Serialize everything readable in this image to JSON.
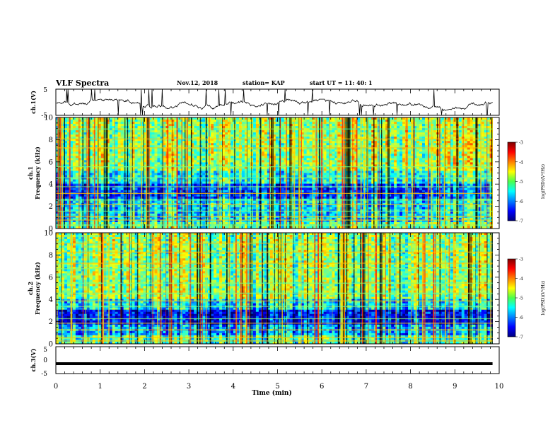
{
  "header": {
    "title": "VLF Spectra",
    "date": "Nov.12, 2018",
    "station": "station= KAP",
    "start": "start UT =  11: 40: 1"
  },
  "chart_data": [
    {
      "type": "line",
      "name": "ch1-waveform",
      "ylabel": "ch.1(V)",
      "ylim": [
        -5,
        5
      ],
      "ytick_labels": [
        "5",
        "-5"
      ],
      "xlim": [
        0,
        9.85
      ]
    },
    {
      "type": "heatmap",
      "name": "ch1-spectrogram",
      "ylabel_line1": "ch.1",
      "ylabel_line2": "Frequency (kHz)",
      "ylim": [
        0,
        10
      ],
      "yticks": [
        0,
        2,
        4,
        6,
        8,
        10
      ],
      "xlim": [
        0,
        9.85
      ],
      "colorbar": {
        "label": "log(PSD)(V²/Hz)",
        "range": [
          -7,
          -3
        ],
        "ticks": [
          "-3",
          "-4",
          "-5",
          "-6",
          "-7"
        ]
      }
    },
    {
      "type": "heatmap",
      "name": "ch2-spectrogram",
      "ylabel_line1": "ch.2",
      "ylabel_line2": "Frequency (kHz)",
      "ylim": [
        0,
        10
      ],
      "yticks": [
        0,
        2,
        4,
        6,
        8,
        10
      ],
      "xlim": [
        0,
        9.85
      ],
      "colorbar": {
        "label": "log(PSD)(V²/Hz)",
        "range": [
          -7,
          -3
        ],
        "ticks": [
          "-3",
          "-4",
          "-5",
          "-6",
          "-7"
        ]
      }
    },
    {
      "type": "line",
      "name": "ch3-waveform",
      "ylabel": "ch.3(V)",
      "ylim": [
        -5,
        5
      ],
      "ytick_labels": [
        "5",
        "0",
        "-5"
      ],
      "level": -1.3,
      "xlim": [
        0,
        9.85
      ]
    }
  ],
  "xaxis": {
    "label": "Time (min)",
    "range": [
      0,
      10
    ],
    "ticks": [
      "0",
      "1",
      "2",
      "3",
      "4",
      "5",
      "6",
      "7",
      "8",
      "9",
      "10"
    ]
  }
}
